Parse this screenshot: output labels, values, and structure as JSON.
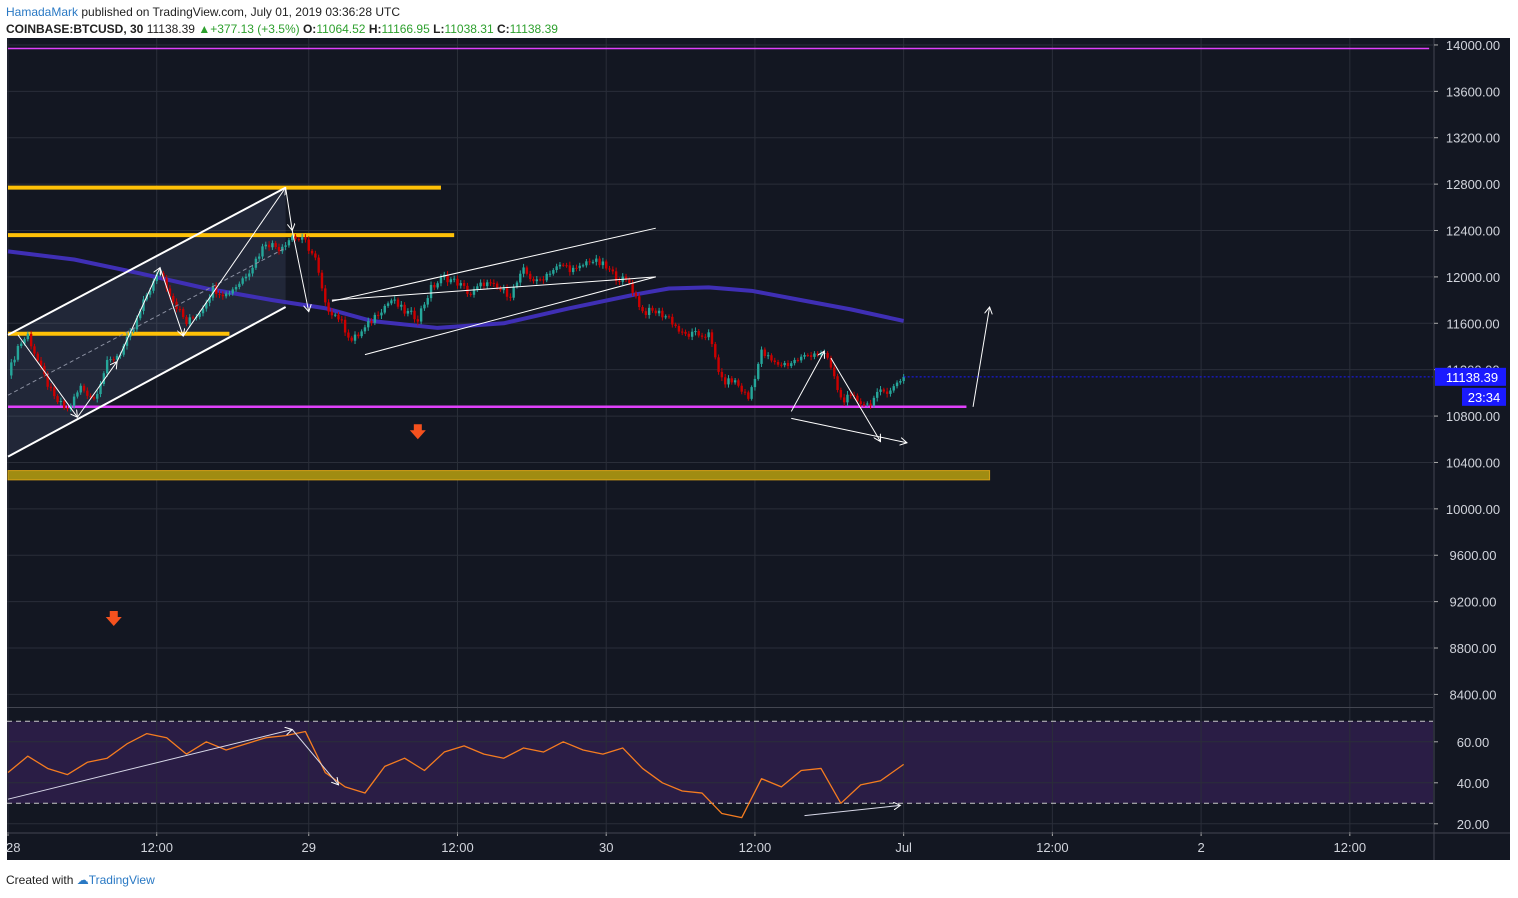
{
  "header": {
    "author": "HamadaMark",
    "published": "published on TradingView.com, July 01, 2019 03:36:28 UTC",
    "symbol": "COINBASE:BTCUSD, 30",
    "last": "11138.39",
    "change": "+377.13 (+3.5%)",
    "o_label": "O:",
    "o_value": "11064.52",
    "h_label": "H:",
    "h_value": "11166.95",
    "l_label": "L:",
    "l_value": "11038.31",
    "c_label": "C:",
    "c_value": "11138.39"
  },
  "footer": {
    "created": "Created with",
    "brand": "TradingView"
  },
  "colors": {
    "background": "#131722",
    "grid": "#2a2e39",
    "up": "#26a69a",
    "down": "#cc0000",
    "ma": "#3f2fb5",
    "rsi": "#f57c20",
    "magenta": "#e040fb",
    "yellow": "#ffc107",
    "olive": "#a08c12",
    "price_label": "#1a1aff"
  },
  "chart_data": [
    {
      "type": "candlestick",
      "symbol": "COINBASE:BTCUSD",
      "interval": "30",
      "x_ticks": [
        "28",
        "12:00",
        "29",
        "12:00",
        "30",
        "12:00",
        "Jul",
        "12:00",
        "2",
        "12:00"
      ],
      "y_ticks": [
        8400,
        8800,
        9200,
        9600,
        10000,
        10400,
        10800,
        11200,
        11600,
        12000,
        12400,
        12800,
        13200,
        13600,
        14000
      ],
      "y_tick_labels": [
        "8400.00",
        "8800.00",
        "9200.00",
        "9600.00",
        "10000.00",
        "10400.00",
        "10800.00",
        "11200.00",
        "11600.00",
        "12000.00",
        "12400.00",
        "12800.00",
        "13200.00",
        "13600.00",
        "14000.00"
      ],
      "ylim": [
        8300,
        14060
      ],
      "last_price": 11138.39,
      "last_price_label": "11138.39",
      "countdown_label": "23:34",
      "close_path": [
        [
          0,
          11150
        ],
        [
          3,
          11400
        ],
        [
          6,
          11500
        ],
        [
          10,
          11200
        ],
        [
          14,
          10950
        ],
        [
          18,
          10850
        ],
        [
          22,
          11050
        ],
        [
          26,
          10950
        ],
        [
          30,
          11250
        ],
        [
          34,
          11350
        ],
        [
          38,
          11550
        ],
        [
          42,
          11850
        ],
        [
          46,
          12050
        ],
        [
          50,
          11800
        ],
        [
          54,
          11600
        ],
        [
          58,
          11700
        ],
        [
          62,
          11900
        ],
        [
          66,
          11850
        ],
        [
          70,
          11950
        ],
        [
          74,
          12100
        ],
        [
          78,
          12300
        ],
        [
          82,
          12250
        ],
        [
          86,
          12350
        ],
        [
          90,
          12300
        ],
        [
          93,
          12150
        ],
        [
          96,
          11750
        ],
        [
          100,
          11650
        ],
        [
          104,
          11450
        ],
        [
          108,
          11550
        ],
        [
          112,
          11700
        ],
        [
          116,
          11800
        ],
        [
          120,
          11700
        ],
        [
          124,
          11650
        ],
        [
          128,
          11900
        ],
        [
          132,
          12000
        ],
        [
          136,
          11950
        ],
        [
          140,
          11850
        ],
        [
          144,
          11950
        ],
        [
          148,
          11900
        ],
        [
          152,
          11850
        ],
        [
          156,
          12050
        ],
        [
          160,
          11950
        ],
        [
          164,
          12050
        ],
        [
          168,
          12100
        ],
        [
          172,
          12050
        ],
        [
          176,
          12150
        ],
        [
          180,
          12100
        ],
        [
          184,
          12000
        ],
        [
          188,
          11950
        ],
        [
          192,
          11700
        ],
        [
          196,
          11700
        ],
        [
          200,
          11650
        ],
        [
          204,
          11500
        ],
        [
          208,
          11500
        ],
        [
          212,
          11500
        ],
        [
          216,
          11100
        ],
        [
          220,
          11100
        ],
        [
          224,
          10950
        ],
        [
          228,
          11350
        ],
        [
          232,
          11250
        ],
        [
          236,
          11250
        ],
        [
          240,
          11300
        ],
        [
          244,
          11350
        ],
        [
          248,
          11300
        ],
        [
          252,
          10950
        ],
        [
          256,
          10950
        ],
        [
          260,
          10900
        ],
        [
          264,
          11000
        ],
        [
          268,
          11050
        ],
        [
          271,
          11138.39
        ]
      ],
      "moving_average": [
        [
          0,
          12220
        ],
        [
          20,
          12150
        ],
        [
          40,
          12030
        ],
        [
          60,
          11900
        ],
        [
          80,
          11800
        ],
        [
          96,
          11730
        ],
        [
          110,
          11620
        ],
        [
          130,
          11560
        ],
        [
          150,
          11600
        ],
        [
          170,
          11730
        ],
        [
          190,
          11850
        ],
        [
          200,
          11900
        ],
        [
          212,
          11910
        ],
        [
          225,
          11880
        ],
        [
          240,
          11800
        ],
        [
          255,
          11720
        ],
        [
          271,
          11620
        ]
      ],
      "levels": [
        {
          "price": 13970,
          "color": "magenta",
          "from_bar": 0,
          "to_bar": 430
        },
        {
          "price": 10880,
          "color": "magenta",
          "from_bar": 0,
          "to_bar": 290
        },
        {
          "price": 12770,
          "color": "yellow",
          "from_bar": 0,
          "to_bar": 131
        },
        {
          "price": 12360,
          "color": "yellow",
          "from_bar": 0,
          "to_bar": 135
        },
        {
          "price": 11510,
          "color": "yellow",
          "from_bar": 0,
          "to_bar": 67
        }
      ],
      "zone": {
        "from_price": 10250,
        "to_price": 10330,
        "from_bar": 0,
        "to_bar": 297,
        "color": "olive"
      },
      "channel": {
        "lines": [
          [
            [
              0,
              10450
            ],
            [
              84,
              11740
            ]
          ],
          [
            [
              0,
              11500
            ],
            [
              84,
              12770
            ]
          ]
        ],
        "fill_top": [
          [
            0,
            11500
          ],
          [
            84,
            12770
          ]
        ],
        "fill_bottom": [
          [
            0,
            10450
          ],
          [
            84,
            11740
          ]
        ],
        "mid": [
          [
            0,
            10980
          ],
          [
            84,
            12250
          ]
        ]
      },
      "trendlines": [
        [
          [
            98,
            11800
          ],
          [
            196,
            12000
          ]
        ],
        [
          [
            98,
            11790
          ],
          [
            196,
            12420
          ]
        ],
        [
          [
            108,
            11330
          ],
          [
            196,
            12000
          ]
        ]
      ],
      "arrows": [
        [
          [
            3,
            11500
          ],
          [
            21,
            10790
          ]
        ],
        [
          [
            21,
            10790
          ],
          [
            33,
            11270
          ]
        ],
        [
          [
            33,
            11270
          ],
          [
            46,
            12080
          ]
        ],
        [
          [
            46,
            12080
          ],
          [
            53,
            11490
          ]
        ],
        [
          [
            53,
            11490
          ],
          [
            84,
            12770
          ]
        ],
        [
          [
            84,
            12770
          ],
          [
            86,
            12400
          ]
        ],
        [
          [
            86,
            12400
          ],
          [
            91,
            11700
          ]
        ],
        [
          [
            237,
            10780
          ],
          [
            272,
            10570
          ]
        ],
        [
          [
            237,
            10840
          ],
          [
            247,
            11360
          ]
        ],
        [
          [
            249,
            11300
          ],
          [
            264,
            10580
          ]
        ],
        [
          [
            292,
            10880
          ],
          [
            297,
            11740
          ]
        ]
      ],
      "signals": [
        {
          "bar": 32,
          "price": 9050,
          "direction": "down",
          "color": "#f4511e"
        },
        {
          "bar": 124,
          "price": 10660,
          "direction": "down",
          "color": "#f4511e"
        }
      ]
    },
    {
      "type": "line",
      "name": "RSI",
      "y_ticks": [
        20,
        40,
        60
      ],
      "y_tick_labels": [
        "20.00",
        "40.00",
        "60.00"
      ],
      "ylim": [
        16,
        76
      ],
      "bands": [
        30,
        70
      ],
      "x": [
        0,
        6,
        12,
        18,
        24,
        30,
        36,
        42,
        48,
        54,
        60,
        66,
        72,
        78,
        84,
        90,
        96,
        102,
        108,
        114,
        120,
        126,
        132,
        138,
        144,
        150,
        156,
        162,
        168,
        174,
        180,
        186,
        192,
        198,
        204,
        210,
        216,
        222,
        228,
        234,
        240,
        246,
        252,
        258,
        264,
        271
      ],
      "values": [
        45,
        53,
        47,
        44,
        50,
        52,
        59,
        64,
        62,
        54,
        60,
        56,
        59,
        62,
        63,
        65,
        45,
        38,
        35,
        48,
        52,
        46,
        55,
        58,
        54,
        52,
        57,
        55,
        60,
        56,
        54,
        57,
        47,
        40,
        36,
        35,
        25,
        23,
        42,
        38,
        46,
        47,
        30,
        39,
        41,
        49
      ],
      "trendlines": [
        [
          [
            0,
            32
          ],
          [
            86,
            66
          ]
        ],
        [
          [
            241,
            24
          ],
          [
            270,
            29
          ]
        ]
      ],
      "arrows": [
        [
          [
            86,
            66
          ],
          [
            100,
            39
          ]
        ]
      ]
    }
  ]
}
